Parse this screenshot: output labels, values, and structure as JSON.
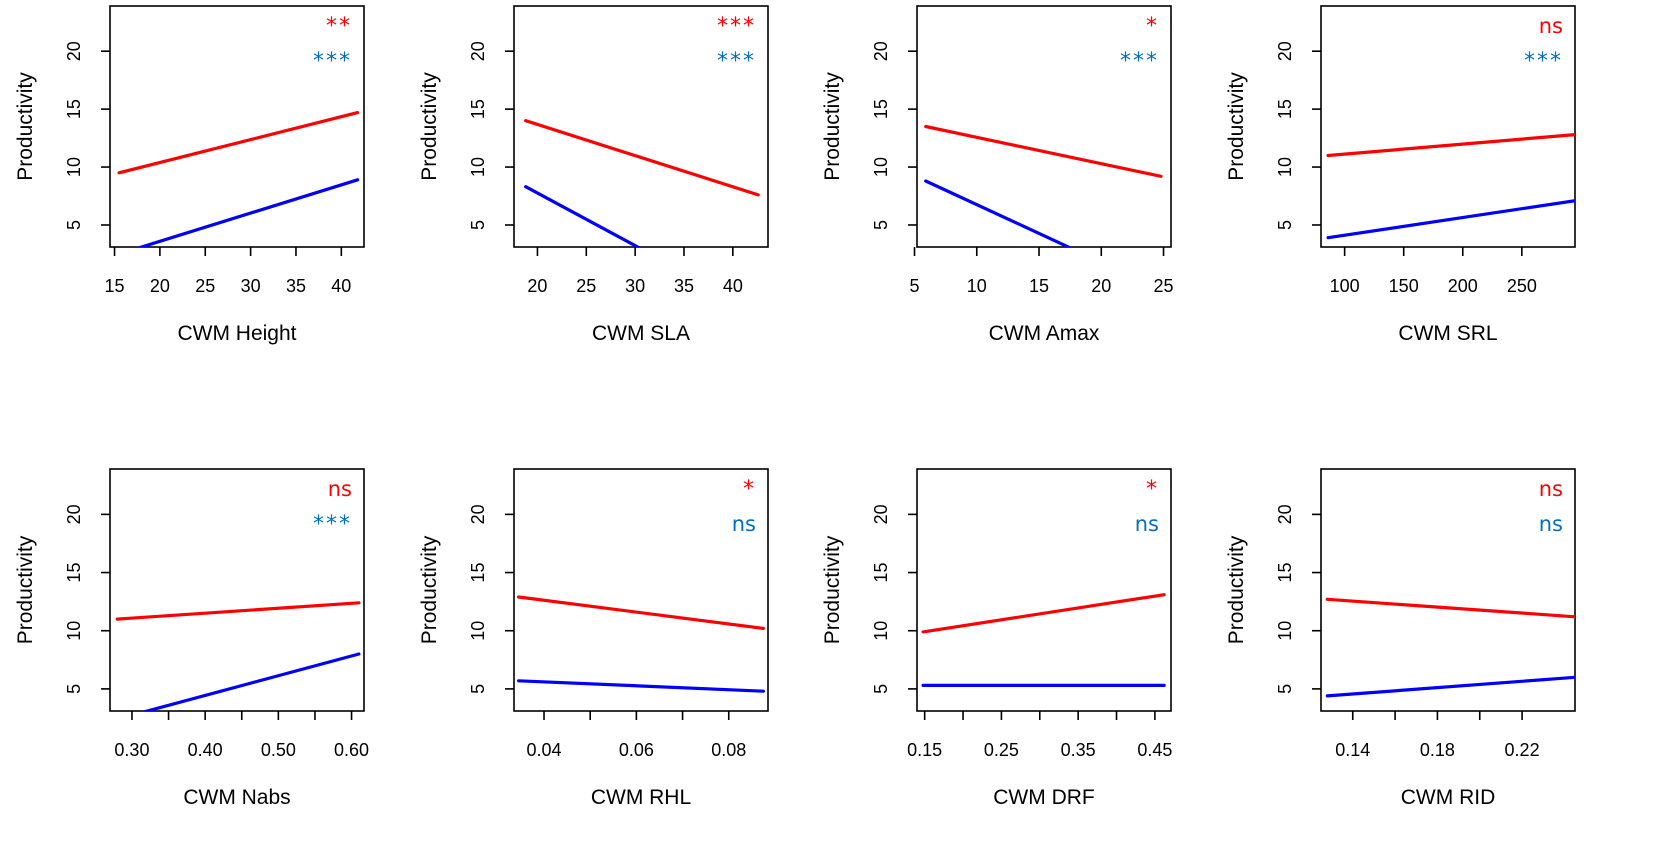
{
  "colors": {
    "red_series": "#ff0000",
    "blue_series": "#0000ff",
    "blue_sig": "#0070c0",
    "axis": "#000000"
  },
  "chart_data": [
    {
      "type": "line",
      "xlabel": "CWM Height",
      "ylabel": "Productivity",
      "xticks": [
        15,
        20,
        25,
        30,
        35,
        40
      ],
      "xtick_labels": [
        "15",
        "20",
        "25",
        "30",
        "35",
        "40"
      ],
      "yticks": [
        5,
        10,
        15,
        20
      ],
      "yticks_labels": [
        "5",
        "10",
        "15",
        "20"
      ],
      "xlim": [
        14.5,
        42.5
      ],
      "ylim": [
        3.1,
        23.9
      ],
      "series": [
        {
          "color": "red",
          "x": [
            15.5,
            41.8
          ],
          "y": [
            9.5,
            14.7
          ],
          "significance": "**"
        },
        {
          "color": "blue",
          "x": [
            15.5,
            41.8
          ],
          "y": [
            2.5,
            8.9
          ],
          "significance": "***"
        }
      ]
    },
    {
      "type": "line",
      "xlabel": "CWM SLA",
      "ylabel": "Productivity",
      "xticks": [
        20,
        25,
        30,
        35,
        40
      ],
      "xtick_labels": [
        "20",
        "25",
        "30",
        "35",
        "40"
      ],
      "yticks": [
        5,
        10,
        15,
        20
      ],
      "yticks_labels": [
        "5",
        "10",
        "15",
        "20"
      ],
      "xlim": [
        17.6,
        43.6
      ],
      "ylim": [
        3.1,
        23.9
      ],
      "series": [
        {
          "color": "red",
          "x": [
            18.8,
            42.6
          ],
          "y": [
            14.0,
            7.6
          ],
          "significance": "***"
        },
        {
          "color": "blue",
          "x": [
            18.8,
            42.6
          ],
          "y": [
            8.3,
            -2.5
          ],
          "significance": "***"
        }
      ]
    },
    {
      "type": "line",
      "xlabel": "CWM Amax",
      "ylabel": "Productivity",
      "xticks": [
        5,
        10,
        15,
        20,
        25
      ],
      "xtick_labels": [
        "5",
        "10",
        "15",
        "20",
        "25"
      ],
      "yticks": [
        5,
        10,
        15,
        20
      ],
      "yticks_labels": [
        "5",
        "10",
        "15",
        "20"
      ],
      "xlim": [
        5.2,
        25.6
      ],
      "ylim": [
        3.1,
        23.9
      ],
      "series": [
        {
          "color": "red",
          "x": [
            5.9,
            24.8
          ],
          "y": [
            13.5,
            9.2
          ],
          "significance": "*"
        },
        {
          "color": "blue",
          "x": [
            5.9,
            24.8
          ],
          "y": [
            8.8,
            -0.6
          ],
          "significance": "***"
        }
      ]
    },
    {
      "type": "line",
      "xlabel": "CWM SRL",
      "ylabel": "Productivity",
      "xticks": [
        100,
        150,
        200,
        250
      ],
      "xtick_labels": [
        "100",
        "150",
        "200",
        "250"
      ],
      "yticks": [
        5,
        10,
        15,
        20
      ],
      "yticks_labels": [
        "5",
        "10",
        "15",
        "20"
      ],
      "xlim": [
        80,
        295
      ],
      "ylim": [
        3.1,
        23.9
      ],
      "series": [
        {
          "color": "red",
          "x": [
            86,
            295
          ],
          "y": [
            11.0,
            12.8
          ],
          "significance": "ns"
        },
        {
          "color": "blue",
          "x": [
            86,
            295
          ],
          "y": [
            3.9,
            7.1
          ],
          "significance": "***"
        }
      ]
    },
    {
      "type": "line",
      "xlabel": "CWM Nabs",
      "ylabel": "Productivity",
      "xticks": [
        0.3,
        0.35,
        0.4,
        0.45,
        0.5,
        0.55,
        0.6
      ],
      "xtick_labels": [
        "0.30",
        "",
        "0.40",
        "",
        "0.50",
        "",
        "0.60"
      ],
      "yticks": [
        5,
        10,
        15,
        20
      ],
      "yticks_labels": [
        "5",
        "10",
        "15",
        "20"
      ],
      "xlim": [
        0.27,
        0.617
      ],
      "ylim": [
        3.1,
        23.9
      ],
      "series": [
        {
          "color": "red",
          "x": [
            0.28,
            0.61
          ],
          "y": [
            11.0,
            12.4
          ],
          "significance": "ns"
        },
        {
          "color": "blue",
          "x": [
            0.28,
            0.61
          ],
          "y": [
            2.4,
            8.0
          ],
          "significance": "***"
        }
      ]
    },
    {
      "type": "line",
      "xlabel": "CWM RHL",
      "ylabel": "Productivity",
      "xticks": [
        0.04,
        0.05,
        0.06,
        0.07,
        0.08
      ],
      "xtick_labels": [
        "0.04",
        "",
        "0.06",
        "",
        "0.08"
      ],
      "yticks": [
        5,
        10,
        15,
        20
      ],
      "yticks_labels": [
        "5",
        "10",
        "15",
        "20"
      ],
      "xlim": [
        0.0335,
        0.0885
      ],
      "ylim": [
        3.1,
        23.9
      ],
      "series": [
        {
          "color": "red",
          "x": [
            0.0345,
            0.0875
          ],
          "y": [
            12.9,
            10.2
          ],
          "significance": "*"
        },
        {
          "color": "blue",
          "x": [
            0.0345,
            0.0875
          ],
          "y": [
            5.7,
            4.8
          ],
          "significance": "ns"
        }
      ]
    },
    {
      "type": "line",
      "xlabel": "CWM DRF",
      "ylabel": "Productivity",
      "xticks": [
        0.15,
        0.2,
        0.25,
        0.3,
        0.35,
        0.4,
        0.45
      ],
      "xtick_labels": [
        "0.15",
        "",
        "0.25",
        "",
        "0.35",
        "",
        "0.45"
      ],
      "yticks": [
        5,
        10,
        15,
        20
      ],
      "yticks_labels": [
        "5",
        "10",
        "15",
        "20"
      ],
      "xlim": [
        0.14,
        0.471
      ],
      "ylim": [
        3.1,
        23.9
      ],
      "series": [
        {
          "color": "red",
          "x": [
            0.148,
            0.462
          ],
          "y": [
            9.9,
            13.1
          ],
          "significance": "*"
        },
        {
          "color": "blue",
          "x": [
            0.148,
            0.462
          ],
          "y": [
            5.3,
            5.3
          ],
          "significance": "ns"
        }
      ]
    },
    {
      "type": "line",
      "xlabel": "CWM RID",
      "ylabel": "Productivity",
      "xticks": [
        0.14,
        0.16,
        0.18,
        0.2,
        0.22
      ],
      "xtick_labels": [
        "0.14",
        "",
        "0.18",
        "",
        "0.22"
      ],
      "yticks": [
        5,
        10,
        15,
        20
      ],
      "yticks_labels": [
        "5",
        "10",
        "15",
        "20"
      ],
      "xlim": [
        0.125,
        0.245
      ],
      "ylim": [
        3.1,
        23.9
      ],
      "series": [
        {
          "color": "red",
          "x": [
            0.128,
            0.245
          ],
          "y": [
            12.7,
            11.2
          ],
          "significance": "ns"
        },
        {
          "color": "blue",
          "x": [
            0.128,
            0.245
          ],
          "y": [
            4.4,
            6.0
          ],
          "significance": "ns"
        }
      ]
    }
  ]
}
